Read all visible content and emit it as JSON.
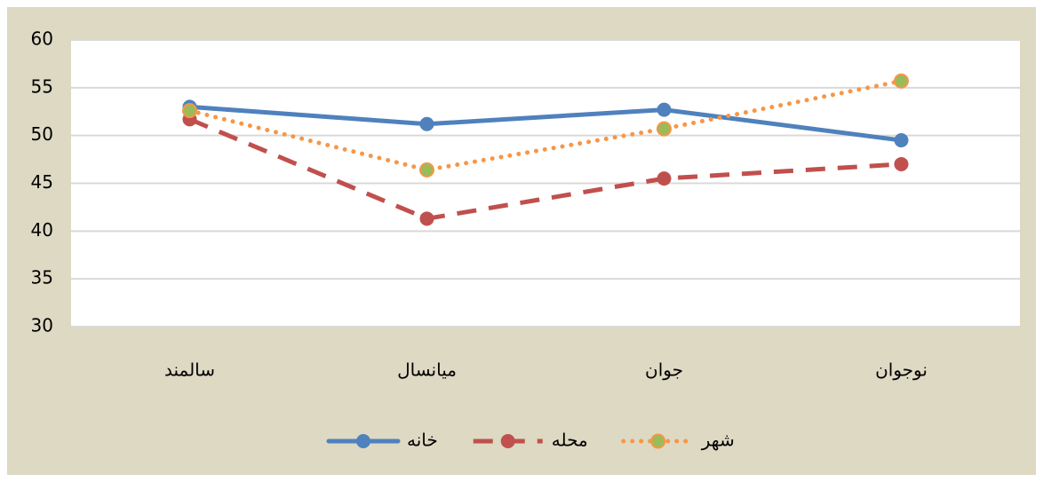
{
  "chart_data": {
    "type": "line",
    "categories": [
      "سالمند",
      "میانسال",
      "جوان",
      "نوجوان"
    ],
    "series": [
      {
        "name": "خانه",
        "color": "#4f81bd",
        "dash": "solid",
        "marker_color": "#4f81bd",
        "values": [
          53.0,
          51.2,
          52.7,
          49.5
        ]
      },
      {
        "name": "محله",
        "color": "#c0504d",
        "dash": "dashed",
        "marker_color": "#c0504d",
        "values": [
          51.7,
          41.3,
          45.5,
          47.0
        ]
      },
      {
        "name": "شهر",
        "color": "#f79646",
        "dash": "dotted",
        "marker_color": "#9bbb59",
        "values": [
          52.6,
          46.4,
          50.7,
          55.7
        ]
      }
    ],
    "ylim": [
      30,
      60
    ],
    "yticks": [
      30,
      35,
      40,
      45,
      50,
      55,
      60
    ],
    "grid": true,
    "legend": "bottom"
  }
}
